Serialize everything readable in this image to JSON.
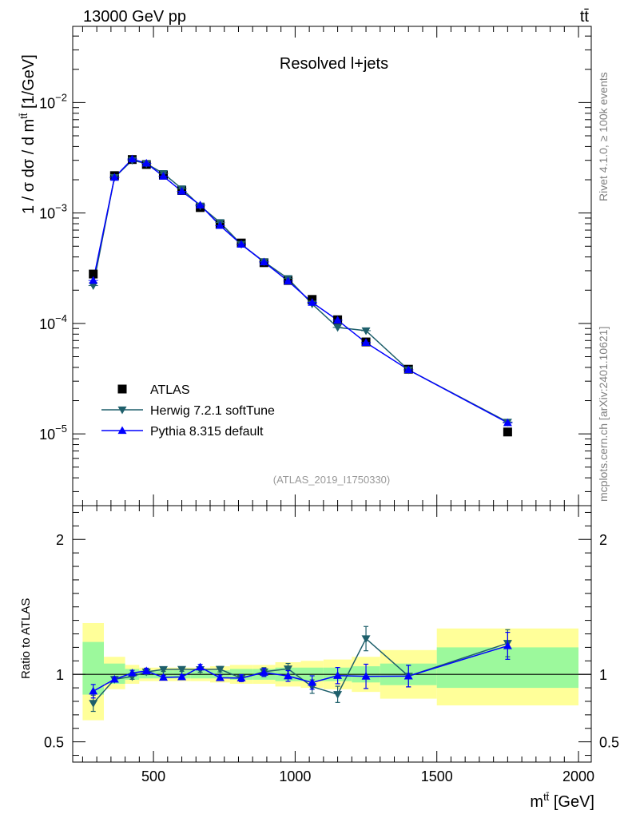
{
  "header": {
    "energy_label": "13000 GeV pp",
    "process_label": "tt̄"
  },
  "side_labels": {
    "rivet": "Rivet 4.1.0, ≥ 100k events",
    "source": "mcplots.cern.ch [arXiv:2401.10621]"
  },
  "chart_data": {
    "type": "scatter",
    "title": "Resolved l+jets",
    "analysis_id": "(ATLAS_2019_I1750330)",
    "xlabel": "m^{tt̄} [GeV]",
    "ylabel": "1 / σ dσ / d m^{tt̄} [1/GeV]",
    "ratio_ylabel": "Ratio to ATLAS",
    "xlim": [
      215,
      2045
    ],
    "ylim_log10": [
      -5.65,
      -1.31
    ],
    "ratio_ylim": [
      0.35,
      2.25
    ],
    "x_ticks": [
      500,
      1000,
      1500,
      2000
    ],
    "x_tick_labels": [
      "500",
      "1000",
      "1500",
      "2000"
    ],
    "y_ticks": [
      {
        "exp": -2,
        "base": "10",
        "sup": "−2"
      },
      {
        "exp": -3,
        "base": "10",
        "sup": "−3"
      },
      {
        "exp": -4,
        "base": "10",
        "sup": "−4"
      },
      {
        "exp": -5,
        "base": "10",
        "sup": "−5"
      }
    ],
    "ratio_ticks": [
      {
        "value": 0.5,
        "label": "0.5"
      },
      {
        "value": 1,
        "label": "1"
      },
      {
        "value": 2,
        "label": "2"
      }
    ],
    "bins": [
      {
        "lo": 250,
        "hi": 325,
        "x": 287.5,
        "data": 0.00028,
        "herwig": 0.00022,
        "pythia": 0.000245,
        "herwig_err": 0.06,
        "pythia_err": 0.05,
        "band_inner": [
          0.85,
          1.24
        ],
        "band_outer": [
          0.66,
          1.38
        ]
      },
      {
        "lo": 325,
        "hi": 400,
        "x": 362.5,
        "data": 0.00218,
        "herwig": 0.0021,
        "pythia": 0.0021,
        "herwig_err": 0.015,
        "pythia_err": 0.015,
        "band_inner": [
          0.93,
          1.08
        ],
        "band_outer": [
          0.89,
          1.13
        ]
      },
      {
        "lo": 400,
        "hi": 450,
        "x": 425,
        "data": 0.00305,
        "herwig": 0.003,
        "pythia": 0.00308,
        "herwig_err": 0.02,
        "pythia_err": 0.02,
        "band_inner": [
          0.96,
          1.04
        ],
        "band_outer": [
          0.93,
          1.07
        ]
      },
      {
        "lo": 450,
        "hi": 500,
        "x": 475,
        "data": 0.00275,
        "herwig": 0.0028,
        "pythia": 0.00282,
        "herwig_err": 0.02,
        "pythia_err": 0.02,
        "band_inner": [
          0.97,
          1.03
        ],
        "band_outer": [
          0.95,
          1.05
        ]
      },
      {
        "lo": 500,
        "hi": 570,
        "x": 535,
        "data": 0.0022,
        "herwig": 0.00228,
        "pythia": 0.00215,
        "herwig_err": 0.015,
        "pythia_err": 0.015,
        "band_inner": [
          0.97,
          1.03
        ],
        "band_outer": [
          0.95,
          1.05
        ]
      },
      {
        "lo": 570,
        "hi": 630,
        "x": 600,
        "data": 0.0016,
        "herwig": 0.00166,
        "pythia": 0.00157,
        "herwig_err": 0.015,
        "pythia_err": 0.015,
        "band_inner": [
          0.97,
          1.03
        ],
        "band_outer": [
          0.95,
          1.05
        ]
      },
      {
        "lo": 630,
        "hi": 700,
        "x": 665,
        "data": 0.00112,
        "herwig": 0.00116,
        "pythia": 0.00118,
        "herwig_err": 0.02,
        "pythia_err": 0.02,
        "band_inner": [
          0.97,
          1.03
        ],
        "band_outer": [
          0.95,
          1.05
        ]
      },
      {
        "lo": 700,
        "hi": 770,
        "x": 735,
        "data": 0.00079,
        "herwig": 0.00082,
        "pythia": 0.00077,
        "herwig_err": 0.02,
        "pythia_err": 0.02,
        "band_inner": [
          0.97,
          1.03
        ],
        "band_outer": [
          0.94,
          1.06
        ]
      },
      {
        "lo": 770,
        "hi": 850,
        "x": 810,
        "data": 0.000535,
        "herwig": 0.00052,
        "pythia": 0.00052,
        "herwig_err": 0.025,
        "pythia_err": 0.025,
        "band_inner": [
          0.96,
          1.04
        ],
        "band_outer": [
          0.93,
          1.07
        ]
      },
      {
        "lo": 850,
        "hi": 930,
        "x": 890,
        "data": 0.000355,
        "herwig": 0.000362,
        "pythia": 0.00036,
        "herwig_err": 0.03,
        "pythia_err": 0.03,
        "band_inner": [
          0.96,
          1.04
        ],
        "band_outer": [
          0.93,
          1.07
        ]
      },
      {
        "lo": 930,
        "hi": 1020,
        "x": 975,
        "data": 0.000245,
        "herwig": 0.000255,
        "pythia": 0.000242,
        "herwig_err": 0.04,
        "pythia_err": 0.04,
        "band_inner": [
          0.95,
          1.05
        ],
        "band_outer": [
          0.91,
          1.09
        ]
      },
      {
        "lo": 1020,
        "hi": 1100,
        "x": 1060,
        "data": 0.000165,
        "herwig": 0.00015,
        "pythia": 0.000155,
        "herwig_err": 0.05,
        "pythia_err": 0.05,
        "band_inner": [
          0.95,
          1.05
        ],
        "band_outer": [
          0.9,
          1.1
        ]
      },
      {
        "lo": 1100,
        "hi": 1200,
        "x": 1150,
        "data": 0.000108,
        "herwig": 9.2e-05,
        "pythia": 0.000107,
        "herwig_err": 0.06,
        "pythia_err": 0.06,
        "band_inner": [
          0.95,
          1.05
        ],
        "band_outer": [
          0.89,
          1.11
        ]
      },
      {
        "lo": 1200,
        "hi": 1300,
        "x": 1250,
        "data": 6.8e-05,
        "herwig": 8.6e-05,
        "pythia": 6.7e-05,
        "herwig_err": 0.09,
        "pythia_err": 0.09,
        "band_inner": [
          0.94,
          1.06
        ],
        "band_outer": [
          0.87,
          1.13
        ]
      },
      {
        "lo": 1300,
        "hi": 1500,
        "x": 1400,
        "data": 3.85e-05,
        "herwig": 3.8e-05,
        "pythia": 3.8e-05,
        "herwig_err": 0.08,
        "pythia_err": 0.08,
        "band_inner": [
          0.92,
          1.08
        ],
        "band_outer": [
          0.82,
          1.18
        ]
      },
      {
        "lo": 1500,
        "hi": 2000,
        "x": 1750,
        "data": 1.04e-05,
        "herwig": 1.28e-05,
        "pythia": 1.26e-05,
        "herwig_err": 0.1,
        "pythia_err": 0.1,
        "band_inner": [
          0.9,
          1.2
        ],
        "band_outer": [
          0.77,
          1.34
        ]
      }
    ],
    "legend": [
      {
        "name": "ATLAS",
        "marker": "square",
        "color": "#000000"
      },
      {
        "name": "Herwig 7.2.1 softTune",
        "marker": "triangle-down",
        "color": "#1e5f6b"
      },
      {
        "name": "Pythia 8.315 default",
        "marker": "triangle-up",
        "color": "#0000ff"
      }
    ],
    "colors": {
      "data": "#000000",
      "herwig": "#1e5f6b",
      "pythia": "#0000ff",
      "band_inner": "#9cf99c",
      "band_outer": "#ffff99",
      "analysis_id": "#999999",
      "side_label": "#808080"
    }
  }
}
